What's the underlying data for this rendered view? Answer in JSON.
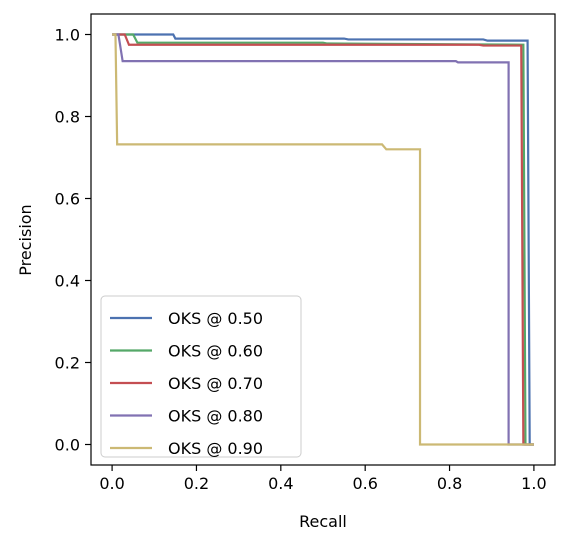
{
  "chart_data": {
    "type": "line",
    "title": "",
    "xlabel": "Recall",
    "ylabel": "Precision",
    "xlim": [
      -0.05,
      1.05
    ],
    "ylim": [
      -0.05,
      1.05
    ],
    "xticks": [
      0.0,
      0.2,
      0.4,
      0.6,
      0.8,
      1.0
    ],
    "yticks": [
      0.0,
      0.2,
      0.4,
      0.6,
      0.8,
      1.0
    ],
    "xtick_labels": [
      "0.0",
      "0.2",
      "0.4",
      "0.6",
      "0.8",
      "1.0"
    ],
    "ytick_labels": [
      "0.0",
      "0.2",
      "0.4",
      "0.6",
      "0.8",
      "1.0"
    ],
    "grid": false,
    "legend_position": "lower-left",
    "series": [
      {
        "name": "OKS @ 0.50",
        "color": "#4c72b0",
        "x": [
          0.0,
          0.145,
          0.15,
          0.55,
          0.56,
          0.88,
          0.89,
          0.985,
          0.99,
          0.995,
          1.0
        ],
        "y": [
          1.0,
          1.0,
          0.99,
          0.99,
          0.988,
          0.988,
          0.985,
          0.985,
          0.0,
          0.0,
          0.0
        ]
      },
      {
        "name": "OKS @ 0.60",
        "color": "#55a868",
        "x": [
          0.0,
          0.05,
          0.06,
          0.5,
          0.51,
          0.975,
          0.98,
          1.0
        ],
        "y": [
          1.0,
          1.0,
          0.98,
          0.98,
          0.978,
          0.975,
          0.0,
          0.0
        ]
      },
      {
        "name": "OKS @ 0.70",
        "color": "#c44e52",
        "x": [
          0.0,
          0.03,
          0.04,
          0.87,
          0.88,
          0.97,
          0.975,
          1.0
        ],
        "y": [
          1.0,
          1.0,
          0.975,
          0.975,
          0.973,
          0.973,
          0.0,
          0.0
        ]
      },
      {
        "name": "OKS @ 0.80",
        "color": "#8172b2",
        "x": [
          0.0,
          0.015,
          0.025,
          0.815,
          0.82,
          0.94,
          0.94,
          1.0
        ],
        "y": [
          1.0,
          1.0,
          0.935,
          0.935,
          0.932,
          0.932,
          0.0,
          0.0
        ]
      },
      {
        "name": "OKS @ 0.90",
        "color": "#ccb974",
        "x": [
          0.0,
          0.008,
          0.012,
          0.64,
          0.65,
          0.73,
          0.73,
          1.0
        ],
        "y": [
          1.0,
          1.0,
          0.732,
          0.732,
          0.72,
          0.72,
          0.0,
          0.0
        ]
      }
    ]
  }
}
